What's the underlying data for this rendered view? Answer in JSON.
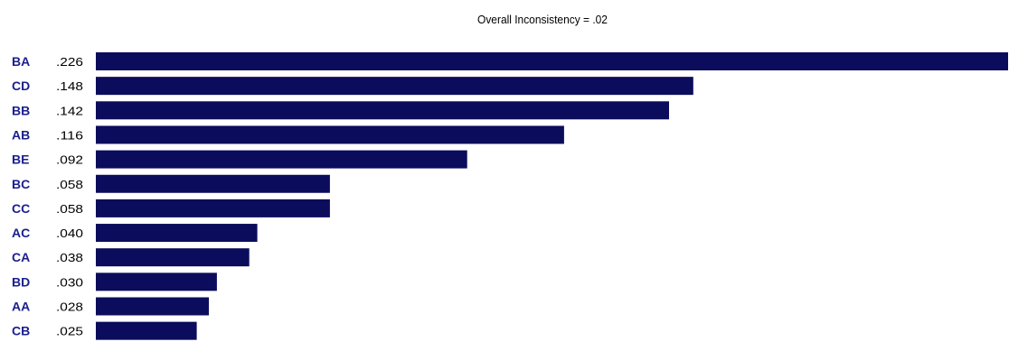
{
  "chart_data": {
    "type": "bar",
    "orientation": "horizontal",
    "title": "Overall Inconsistency = .02",
    "categories": [
      "BA",
      "CD",
      "BB",
      "AB",
      "BE",
      "BC",
      "CC",
      "AC",
      "CA",
      "BD",
      "AA",
      "CB"
    ],
    "value_labels": [
      ".226",
      ".148",
      ".142",
      ".116",
      ".092",
      ".058",
      ".058",
      ".040",
      ".038",
      ".030",
      ".028",
      ".025"
    ],
    "values": [
      0.226,
      0.148,
      0.142,
      0.116,
      0.092,
      0.058,
      0.058,
      0.04,
      0.038,
      0.03,
      0.028,
      0.025
    ],
    "bar_color": "#0b0c5c",
    "category_label_color": "#1a1f8c",
    "value_label_color": "#000000",
    "xlabel": "",
    "ylabel": "",
    "grid": false,
    "legend": "none"
  }
}
